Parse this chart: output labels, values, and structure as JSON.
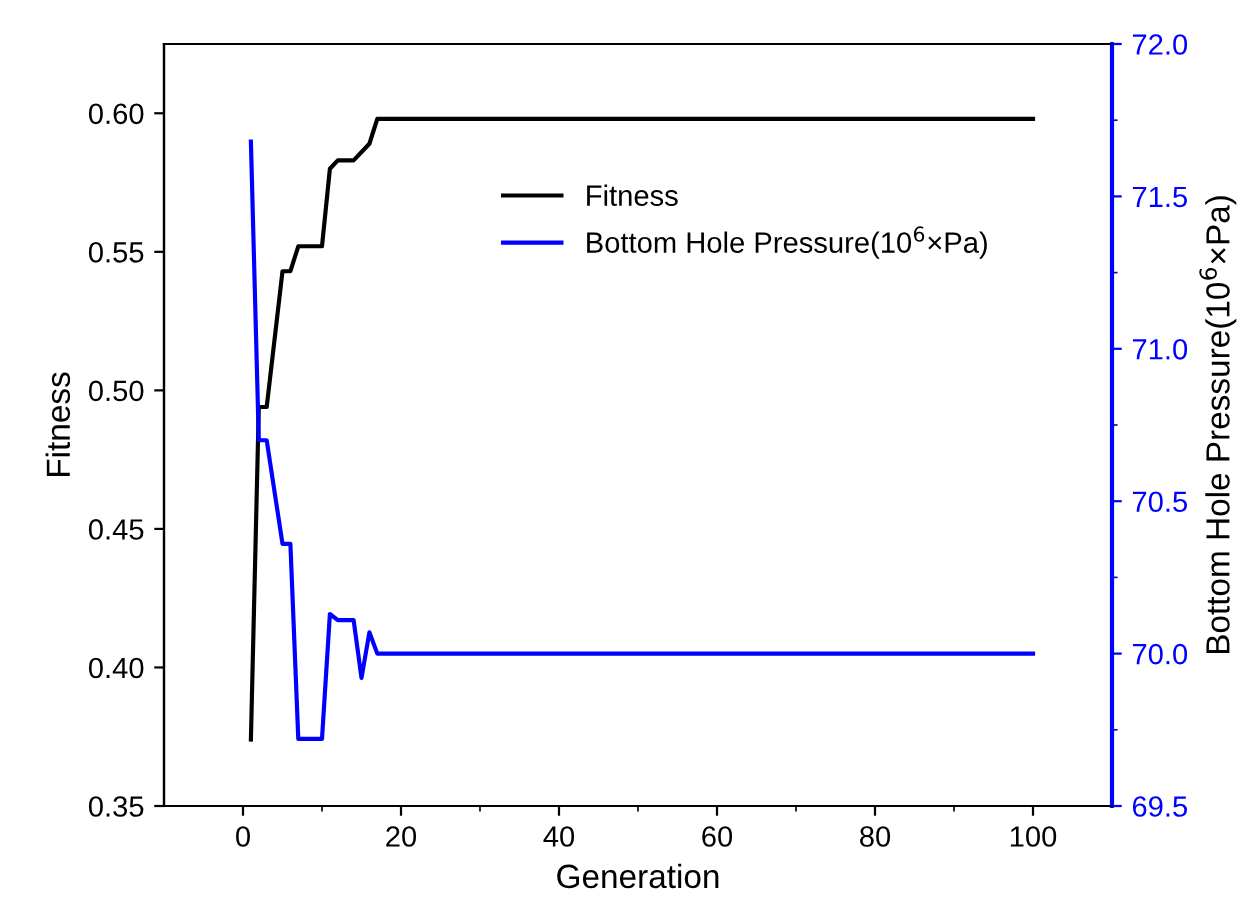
{
  "chart_data": {
    "type": "line",
    "xlabel": "Generation",
    "ylabel": "Fitness",
    "y2label": "Bottom Hole Pressure(10$^{6}$×Pa)",
    "series": [
      {
        "name": "Fitness",
        "color": "#000000",
        "x": [
          1,
          2,
          3,
          5,
          6,
          7,
          10,
          11,
          12,
          14,
          16,
          17,
          100
        ],
        "values": [
          0.374,
          0.494,
          0.494,
          0.543,
          0.543,
          0.552,
          0.552,
          0.58,
          0.583,
          0.583,
          0.589,
          0.598,
          0.598
        ]
      },
      {
        "name": "Bottom Hole Pressure(10$^{6}$×Pa)",
        "color": "#0000ff",
        "axis": "y2",
        "x": [
          1,
          2,
          3,
          5,
          6,
          7,
          10,
          11,
          12,
          14,
          15,
          16,
          17,
          100
        ],
        "values": [
          71.68,
          70.7,
          70.7,
          70.36,
          70.36,
          69.72,
          69.72,
          70.13,
          70.11,
          70.11,
          69.92,
          70.07,
          70.0,
          70.0
        ]
      }
    ],
    "xlim": [
      -10,
      110
    ],
    "xticks": [
      0,
      {
        "value": 10,
        "label": null
      },
      20,
      {
        "value": 30,
        "label": null
      },
      40,
      {
        "value": 50,
        "label": null
      },
      60,
      {
        "value": 70,
        "label": null
      },
      80,
      {
        "value": 90,
        "label": null
      },
      100
    ],
    "ylim": [
      0.35,
      0.625
    ],
    "yticks": [
      0.35,
      {
        "value": 0.4,
        "label": "0.40"
      },
      0.45,
      {
        "value": 0.5,
        "label": "0.50"
      },
      0.55,
      {
        "value": 0.6,
        "label": "0.60"
      }
    ],
    "y2lim": [
      69.5,
      72.0
    ],
    "y2ticks": [
      69.5,
      {
        "value": 69.75,
        "label": null
      },
      {
        "value": 70,
        "label": "70.0"
      },
      {
        "value": 70.25,
        "label": null
      },
      70.5,
      {
        "value": 70.75,
        "label": null
      },
      {
        "value": 71,
        "label": "71.0"
      },
      {
        "value": 71.25,
        "label": null
      },
      71.5,
      {
        "value": 71.75,
        "label": null
      },
      {
        "value": 72,
        "label": "72.0"
      }
    ],
    "legend": "top right",
    "grid": false,
    "marker": "none",
    "line_style": "solid"
  }
}
